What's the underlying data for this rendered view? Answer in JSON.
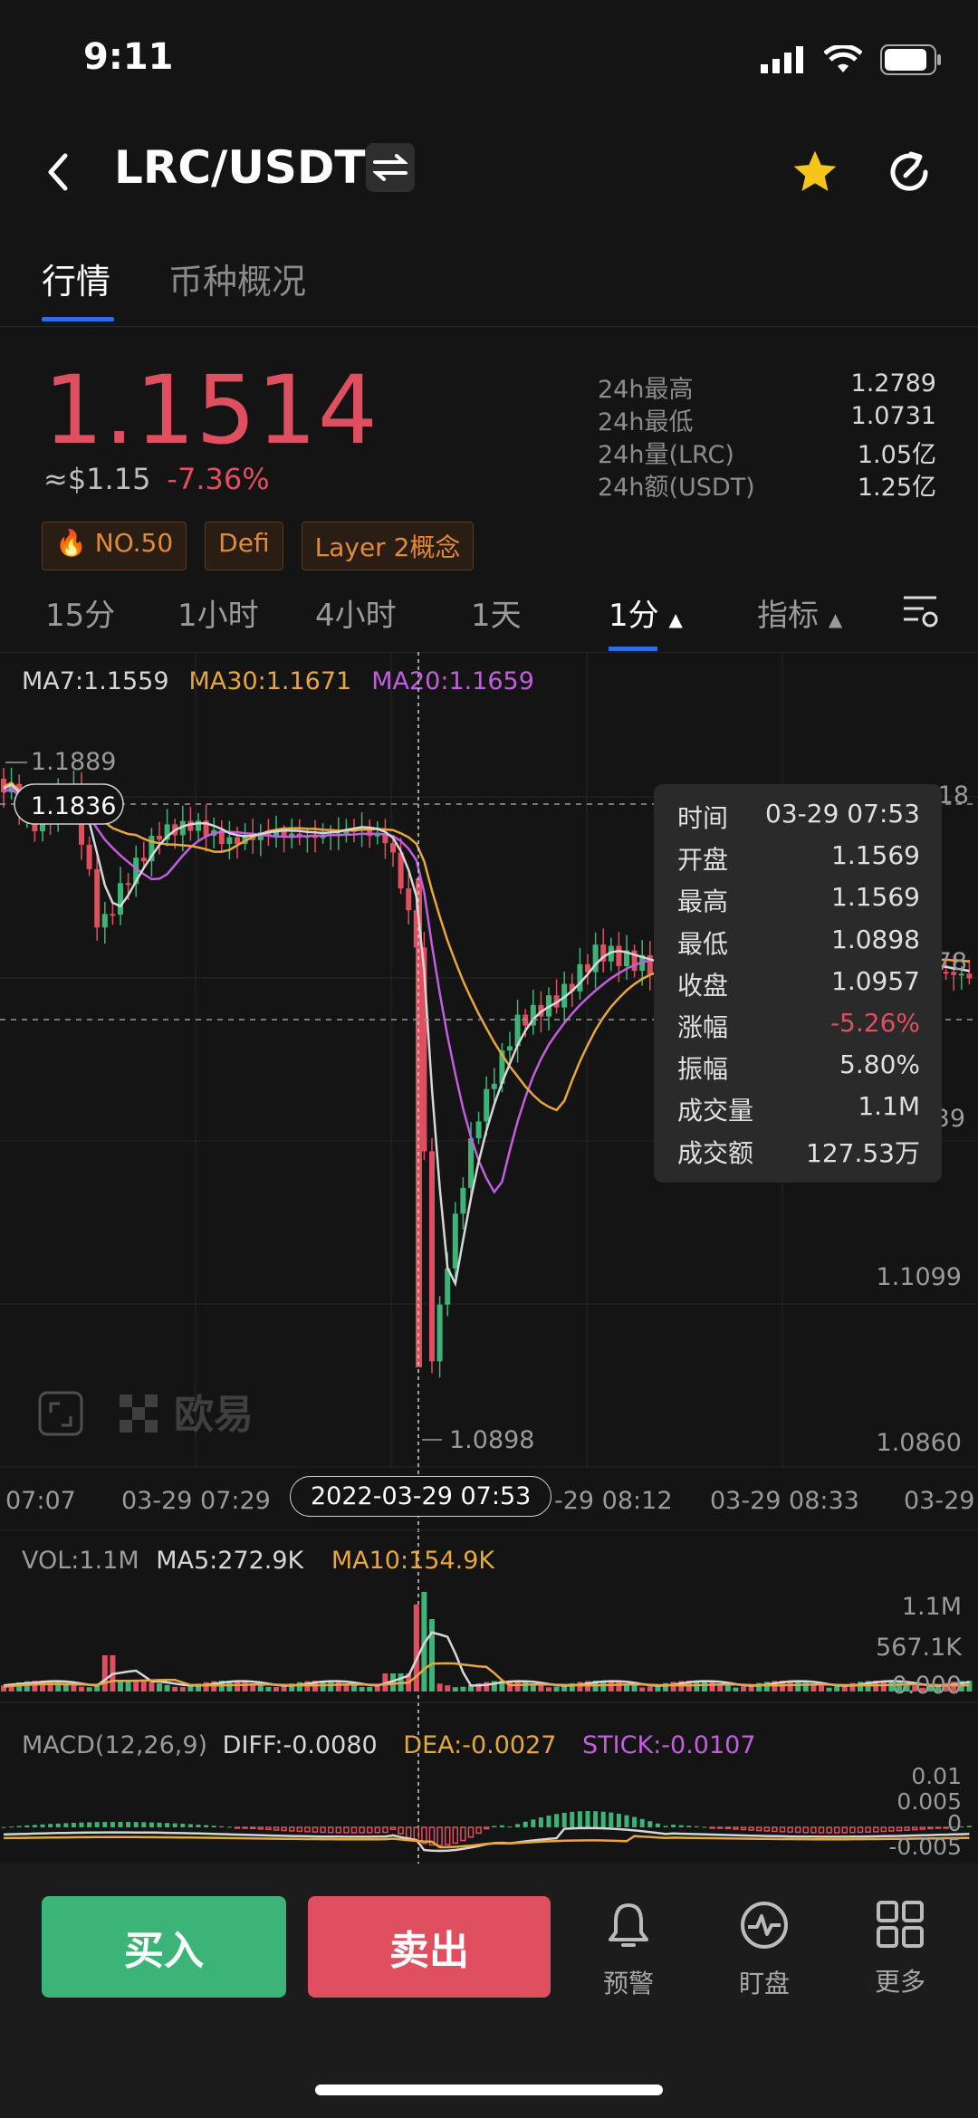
{
  "status": {
    "time": "9:11"
  },
  "header": {
    "pair": "LRC/USDT",
    "icons": [
      "back-icon",
      "swap-icon",
      "star-icon",
      "refresh-icon"
    ]
  },
  "tabs": [
    {
      "label": "行情",
      "active": true
    },
    {
      "label": "币种概况",
      "active": false
    }
  ],
  "price": {
    "last": "1.1514",
    "approx_usd": "≈$1.15",
    "change": "-7.36%"
  },
  "stats": [
    {
      "label": "24h最高",
      "value": "1.2789"
    },
    {
      "label": "24h最低",
      "value": "1.0731"
    },
    {
      "label": "24h量(LRC)",
      "value": "1.05亿"
    },
    {
      "label": "24h额(USDT)",
      "value": "1.25亿"
    }
  ],
  "tags": [
    "NO.50",
    "Defi",
    "Layer 2概念"
  ],
  "intervals": [
    {
      "label": "15分"
    },
    {
      "label": "1小时"
    },
    {
      "label": "4小时"
    },
    {
      "label": "1天"
    },
    {
      "label": "1分",
      "selected": true
    },
    {
      "label": "指标"
    }
  ],
  "ma": {
    "ma7": "MA7:1.1559",
    "ma30": "MA30:1.1671",
    "ma20": "MA20:1.1659"
  },
  "chart": {
    "high_label": "1.1889",
    "cross_price": "1.1836",
    "low_label": "1.0898",
    "axis": {
      "a": "18",
      "b": "78",
      "c": "39",
      "d": "1.1099",
      "e": "1.0860"
    },
    "watermark": "欧易"
  },
  "tooltip": [
    {
      "k": "时间",
      "v": "03-29 07:53"
    },
    {
      "k": "开盘",
      "v": "1.1569"
    },
    {
      "k": "最高",
      "v": "1.1569"
    },
    {
      "k": "最低",
      "v": "1.0898"
    },
    {
      "k": "收盘",
      "v": "1.0957"
    },
    {
      "k": "涨幅",
      "v": "-5.26%",
      "neg": true
    },
    {
      "k": "振幅",
      "v": "5.80%"
    },
    {
      "k": "成交量",
      "v": "1.1M"
    },
    {
      "k": "成交额",
      "v": "127.53万"
    }
  ],
  "time_axis": {
    "t1": "07:07",
    "t2": "03-29 07:29",
    "cross": "2022-03-29 07:53",
    "t3": "-29 08:12",
    "t4": "03-29 08:33",
    "t5": "03-29"
  },
  "volume": {
    "vol": "VOL:1.1M",
    "ma5": "MA5:272.9K",
    "ma10": "MA10:154.9K",
    "y1": "1.1M",
    "y2": "567.1K",
    "y3": "0.000"
  },
  "macd": {
    "label": "MACD(12,26,9)",
    "diff": "DIFF:-0.0080",
    "dea": "DEA:-0.0027",
    "stick": "STICK:-0.0107",
    "y1": "0.01",
    "y2": "0.005",
    "y3": "0",
    "y4": "-0.005"
  },
  "bottom": {
    "buy": "买入",
    "sell": "卖出",
    "alert": "预警",
    "watch": "盯盘",
    "more": "更多"
  },
  "colors": {
    "up": "#3cb478",
    "down": "#e04f5f",
    "accent": "#2f6de8",
    "ma7": "#d6d6d6",
    "ma30": "#e8a73c",
    "ma20": "#c35ee0"
  }
}
